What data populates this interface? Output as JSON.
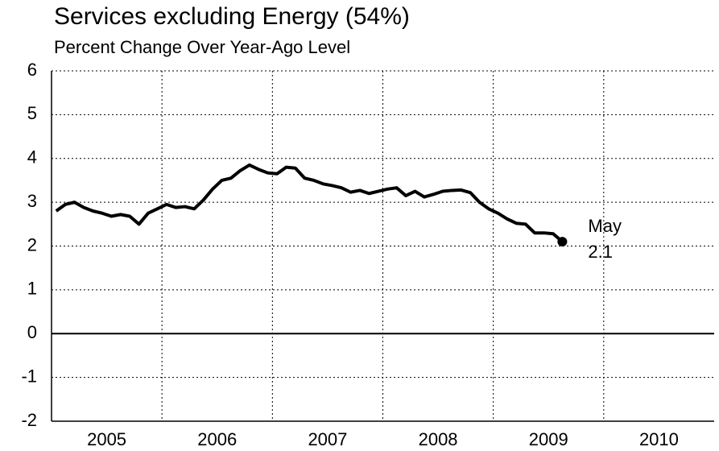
{
  "chart_data": {
    "type": "line",
    "title": "Services excluding Energy (54%)",
    "subtitle": "Percent Change Over Year-Ago Level",
    "annotation": {
      "label": "May",
      "value": 2.1
    },
    "x": [
      2005.042,
      2005.125,
      2005.208,
      2005.292,
      2005.375,
      2005.458,
      2005.542,
      2005.625,
      2005.708,
      2005.792,
      2005.875,
      2005.958,
      2006.042,
      2006.125,
      2006.208,
      2006.292,
      2006.375,
      2006.458,
      2006.542,
      2006.625,
      2006.708,
      2006.792,
      2006.875,
      2006.958,
      2007.042,
      2007.125,
      2007.208,
      2007.292,
      2007.375,
      2007.458,
      2007.542,
      2007.625,
      2007.708,
      2007.792,
      2007.875,
      2007.958,
      2008.042,
      2008.125,
      2008.208,
      2008.292,
      2008.375,
      2008.458,
      2008.542,
      2008.625,
      2008.708,
      2008.792,
      2008.875,
      2008.958,
      2009.042,
      2009.125,
      2009.208,
      2009.292,
      2009.375,
      2009.458,
      2009.542,
      2009.625
    ],
    "series": [
      {
        "name": "Services excluding Energy",
        "color": "#000000",
        "values": [
          2.8,
          2.95,
          3.0,
          2.88,
          2.8,
          2.75,
          2.68,
          2.72,
          2.68,
          2.5,
          2.75,
          2.85,
          2.95,
          2.88,
          2.9,
          2.85,
          3.05,
          3.3,
          3.5,
          3.55,
          3.72,
          3.85,
          3.75,
          3.67,
          3.65,
          3.8,
          3.78,
          3.55,
          3.5,
          3.42,
          3.38,
          3.33,
          3.23,
          3.27,
          3.2,
          3.25,
          3.3,
          3.33,
          3.15,
          3.25,
          3.12,
          3.18,
          3.25,
          3.27,
          3.28,
          3.22,
          3.0,
          2.85,
          2.75,
          2.62,
          2.52,
          2.5,
          2.3,
          2.3,
          2.28,
          2.1
        ]
      }
    ],
    "xlim": [
      2005,
      2011
    ],
    "xticks": [
      2005,
      2006,
      2007,
      2008,
      2009,
      2010
    ],
    "ylim": [
      -2,
      6
    ],
    "yticks": [
      -2,
      -1,
      0,
      1,
      2,
      3,
      4,
      5,
      6
    ],
    "grid": true
  }
}
